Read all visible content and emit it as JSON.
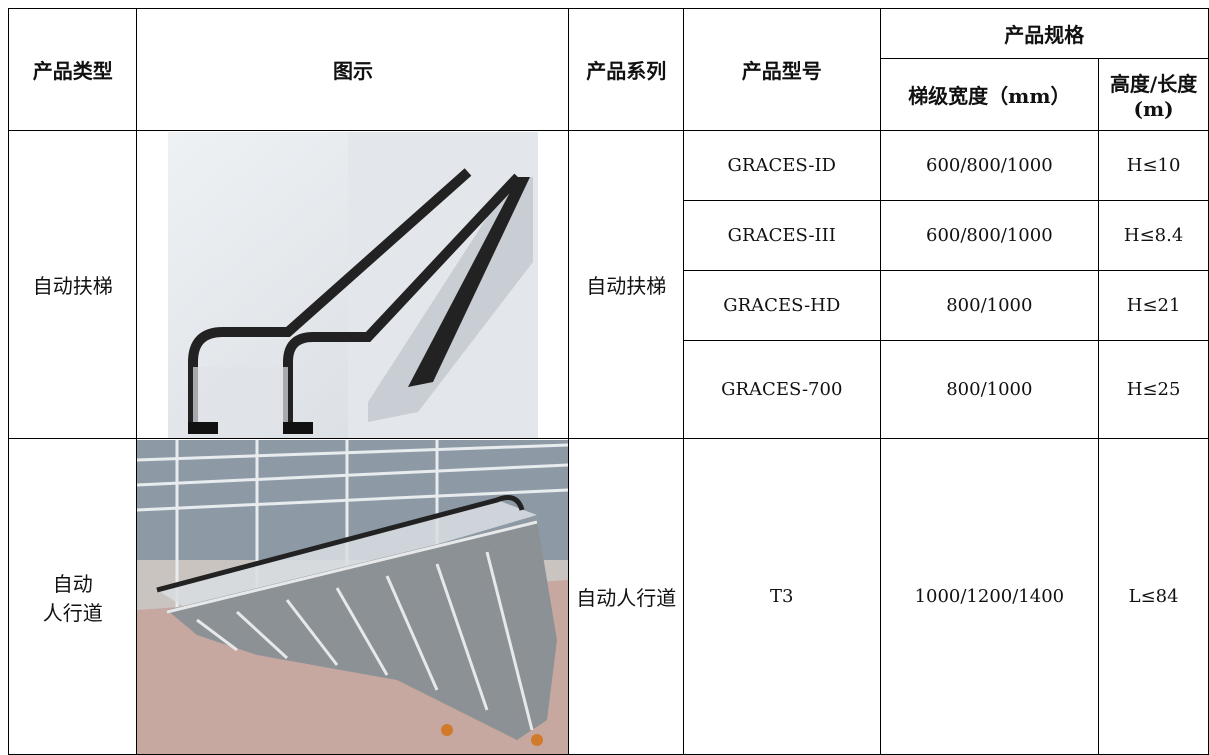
{
  "table": {
    "header": {
      "type": "产品类型",
      "image": "图示",
      "series": "产品系列",
      "model": "产品型号",
      "spec": "产品规格",
      "width": "梯级宽度（mm）",
      "height": "高度/长度(m)"
    },
    "groups": [
      {
        "type": "自动扶梯",
        "series": "自动扶梯",
        "rows": [
          [
            "GRACES-ID",
            "600/800/1000",
            "H≤10"
          ],
          [
            "GRACES-III",
            "600/800/1000",
            "H≤8.4"
          ],
          [
            "GRACES-HD",
            "800/1000",
            "H≤21"
          ],
          [
            "GRACES-700",
            "800/1000",
            "H≤25"
          ]
        ]
      },
      {
        "type": "自动\n人行道",
        "series": "自动人行道",
        "rows": [
          [
            "T3",
            "1000/1200/1400",
            "L≤84"
          ]
        ]
      }
    ]
  }
}
